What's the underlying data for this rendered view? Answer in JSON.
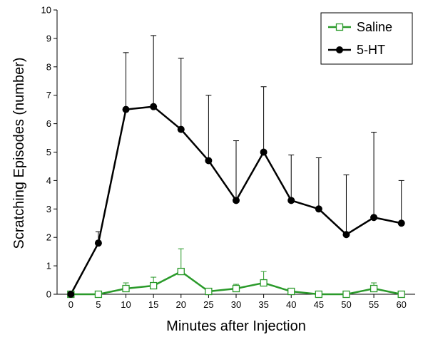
{
  "chart_data": {
    "type": "line",
    "xlabel": "Minutes after Injection",
    "ylabel": "Scratching Episodes  (number)",
    "x": [
      0,
      5,
      10,
      15,
      20,
      25,
      30,
      35,
      40,
      45,
      50,
      55,
      60
    ],
    "xlim": [
      -2.5,
      62.5
    ],
    "ylim": [
      0,
      10
    ],
    "x_ticks": [
      "0",
      "5",
      "10",
      "15",
      "20",
      "25",
      "30",
      "35",
      "40",
      "45",
      "50",
      "55",
      "60"
    ],
    "y_ticks": [
      "0",
      "1",
      "2",
      "3",
      "4",
      "5",
      "6",
      "7",
      "8",
      "9",
      "10"
    ],
    "grid": false,
    "legend_position": "top-right",
    "series": [
      {
        "name": "Saline",
        "color": "#2a9a2a",
        "marker": "open-square",
        "values": [
          0,
          0,
          0.2,
          0.3,
          0.8,
          0.1,
          0.2,
          0.4,
          0.1,
          0,
          0,
          0.2,
          0
        ],
        "error_upper": [
          0,
          0,
          0.4,
          0.6,
          1.6,
          0.1,
          0.35,
          0.8,
          0.1,
          0,
          0,
          0.4,
          0
        ]
      },
      {
        "name": "5-HT",
        "color": "#000000",
        "marker": "filled-circle",
        "values": [
          0,
          1.8,
          6.5,
          6.6,
          5.8,
          4.7,
          3.3,
          5.0,
          3.3,
          3.0,
          2.1,
          2.7,
          2.5
        ],
        "error_upper": [
          0,
          2.2,
          8.5,
          9.1,
          8.3,
          7.0,
          5.4,
          7.3,
          4.9,
          4.8,
          4.2,
          5.7,
          4.0
        ]
      }
    ]
  }
}
